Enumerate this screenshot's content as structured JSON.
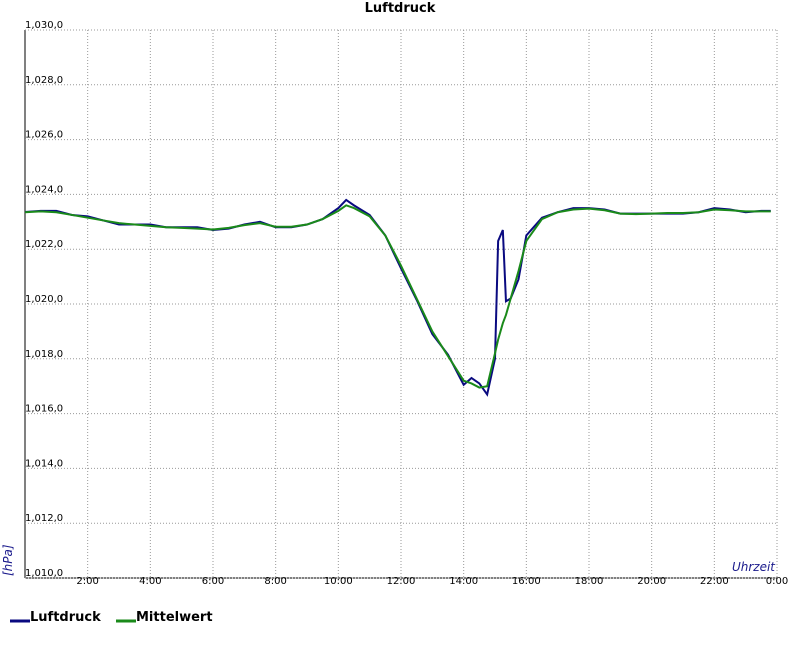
{
  "chart_data": {
    "type": "line",
    "title": "Luftdruck",
    "x_label": "Uhrzeit",
    "y_label": "[hPa]",
    "x": [
      0,
      0.5,
      1,
      1.5,
      2,
      2.5,
      3,
      3.5,
      4,
      4.5,
      5,
      5.5,
      6,
      6.5,
      7,
      7.5,
      8,
      8.5,
      9,
      9.5,
      10,
      10.25,
      10.5,
      11,
      11.5,
      12,
      12.5,
      13,
      13.5,
      14,
      14.25,
      14.5,
      14.75,
      15,
      15.1,
      15.25,
      15.35,
      15.5,
      15.75,
      16,
      16.5,
      17,
      17.5,
      18,
      18.5,
      19,
      19.5,
      20,
      20.5,
      21,
      21.5,
      22,
      22.5,
      23,
      23.5,
      23.8
    ],
    "series": [
      {
        "name": "Luftdruck",
        "color": "#0a0a80",
        "values": [
          1023.36,
          1023.4,
          1023.4,
          1023.25,
          1023.2,
          1023.05,
          1022.9,
          1022.9,
          1022.9,
          1022.8,
          1022.8,
          1022.8,
          1022.7,
          1022.75,
          1022.9,
          1023.0,
          1022.8,
          1022.8,
          1022.9,
          1023.1,
          1023.5,
          1023.8,
          1023.6,
          1023.25,
          1022.5,
          1021.3,
          1020.15,
          1018.9,
          1018.15,
          1017.05,
          1017.3,
          1017.1,
          1016.7,
          1018.0,
          1022.3,
          1022.7,
          1020.1,
          1020.2,
          1020.9,
          1022.5,
          1023.15,
          1023.35,
          1023.5,
          1023.5,
          1023.45,
          1023.3,
          1023.3,
          1023.3,
          1023.3,
          1023.3,
          1023.35,
          1023.5,
          1023.45,
          1023.35,
          1023.4,
          1023.4
        ]
      },
      {
        "name": "Mittelwert",
        "color": "#1a8a1a",
        "values": [
          1023.35,
          1023.38,
          1023.35,
          1023.25,
          1023.15,
          1023.05,
          1022.95,
          1022.9,
          1022.85,
          1022.8,
          1022.78,
          1022.75,
          1022.72,
          1022.78,
          1022.88,
          1022.95,
          1022.82,
          1022.82,
          1022.9,
          1023.1,
          1023.4,
          1023.6,
          1023.5,
          1023.2,
          1022.5,
          1021.4,
          1020.2,
          1019.0,
          1018.1,
          1017.2,
          1017.1,
          1016.95,
          1017.0,
          1018.2,
          1018.7,
          1019.3,
          1019.6,
          1020.2,
          1021.2,
          1022.3,
          1023.1,
          1023.35,
          1023.45,
          1023.48,
          1023.42,
          1023.3,
          1023.28,
          1023.3,
          1023.32,
          1023.32,
          1023.35,
          1023.45,
          1023.42,
          1023.38,
          1023.38,
          1023.38
        ]
      }
    ],
    "xlim": [
      0,
      24
    ],
    "xticks": [
      {
        "value": 2,
        "label": "2:00"
      },
      {
        "value": 4,
        "label": "4:00"
      },
      {
        "value": 6,
        "label": "6:00"
      },
      {
        "value": 8,
        "label": "8:00"
      },
      {
        "value": 10,
        "label": "10:00"
      },
      {
        "value": 12,
        "label": "12:00"
      },
      {
        "value": 14,
        "label": "14:00"
      },
      {
        "value": 16,
        "label": "16:00"
      },
      {
        "value": 18,
        "label": "18:00"
      },
      {
        "value": 20,
        "label": "20:00"
      },
      {
        "value": 22,
        "label": "22:00"
      },
      {
        "value": 24,
        "label": "0:00"
      }
    ],
    "ylim": [
      1010,
      1030
    ],
    "yticks": [
      {
        "value": 1010,
        "label": "1,010,0"
      },
      {
        "value": 1012,
        "label": "1,012,0"
      },
      {
        "value": 1014,
        "label": "1,014,0"
      },
      {
        "value": 1016,
        "label": "1,016,0"
      },
      {
        "value": 1018,
        "label": "1,018,0"
      },
      {
        "value": 1020,
        "label": "1,020,0"
      },
      {
        "value": 1022,
        "label": "1,022,0"
      },
      {
        "value": 1024,
        "label": "1,024,0"
      },
      {
        "value": 1026,
        "label": "1,026,0"
      },
      {
        "value": 1028,
        "label": "1,028,0"
      },
      {
        "value": 1030,
        "label": "1,030,0"
      }
    ],
    "grid": true
  }
}
